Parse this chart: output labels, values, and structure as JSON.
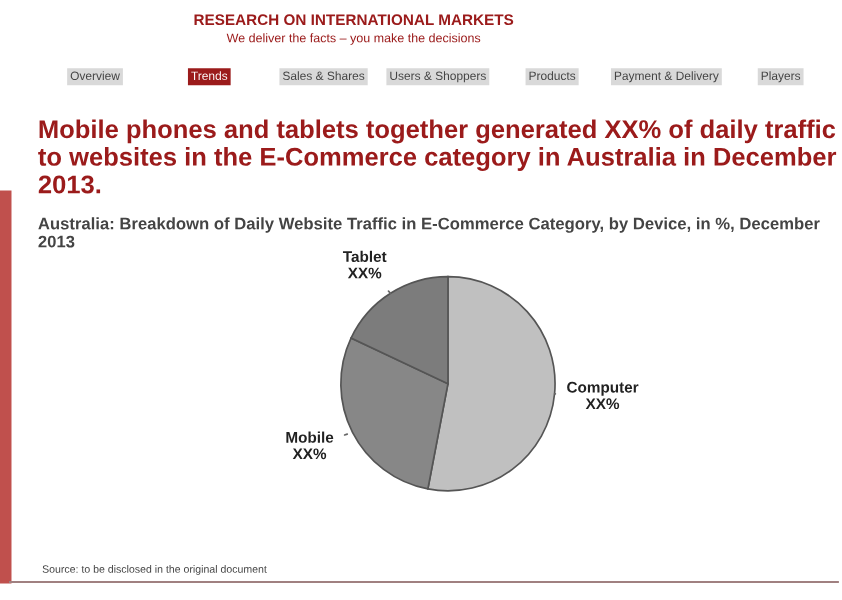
{
  "chart_data": {
    "type": "pie",
    "title": "Mobile phones and tablets together generated XX% of daily traffic to websites in the E-Commerce category in Australia in December 2013.",
    "subtitle": "Australia: Breakdown of Daily Website Traffic in E-Commerce Category, by Device, in %, December 2013",
    "categories": [
      "Computer",
      "Mobile",
      "Tablet"
    ],
    "values": [
      53,
      29,
      18
    ],
    "value_labels": [
      "XX%",
      "XX%",
      "XX%"
    ],
    "colors": [
      "#c0c0c0",
      "#878787",
      "#7c7c7c"
    ],
    "legend": false,
    "annotations": [
      "RESEARCH ON INTERNATIONAL MARKETS",
      "We deliver the facts – you make the decisions",
      "Overview",
      "Trends",
      "Sales & Shares",
      "Users & Shoppers",
      "Products",
      "Payment & Delivery",
      "Players",
      "Source: to be disclosed in the original document"
    ]
  }
}
